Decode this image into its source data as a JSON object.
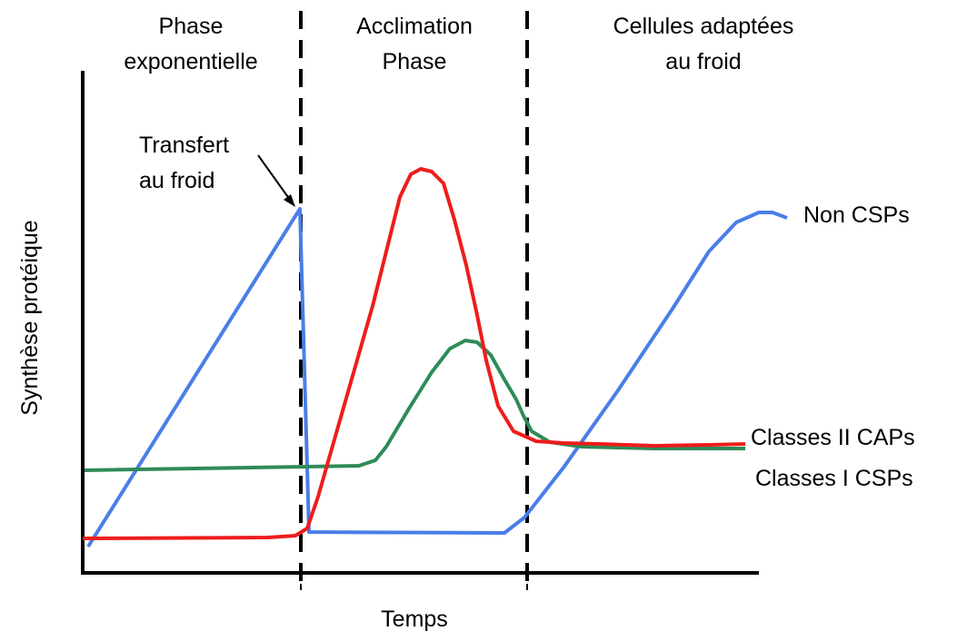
{
  "phases": [
    {
      "line1": "Phase",
      "line2": "exponentielle"
    },
    {
      "line1": "Acclimation",
      "line2": "Phase"
    },
    {
      "line1": "Cellules adaptées",
      "line2": "au froid"
    }
  ],
  "annotation": {
    "line1": "Transfert",
    "line2": "au froid"
  },
  "axes": {
    "ylabel": "Synthèse protéique",
    "xlabel": "Temps"
  },
  "curves": [
    {
      "label": "Non CSPs",
      "color": "#4a7ee8"
    },
    {
      "label": "Classes II CAPs",
      "color": "#2e8b57"
    },
    {
      "label": "Classes I CSPs",
      "color": "#ee1c1c"
    }
  ]
}
